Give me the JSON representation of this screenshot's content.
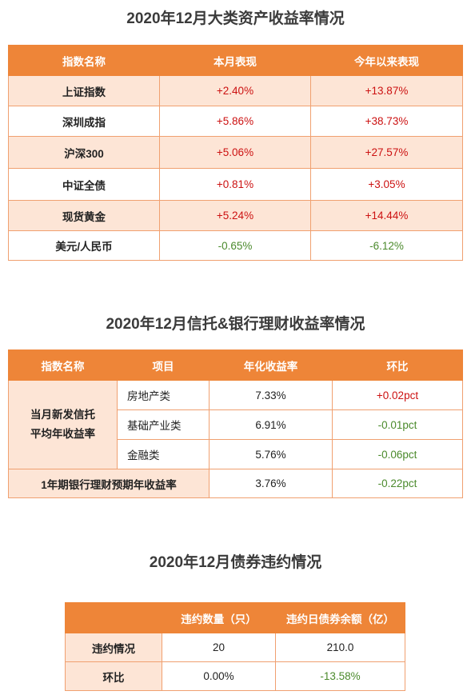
{
  "section1": {
    "title": "2020年12月大类资产收益率情况",
    "headers": [
      "指数名称",
      "本月表现",
      "今年以来表现"
    ],
    "rows": [
      {
        "name": "上证指数",
        "month": "+2.40%",
        "ytd": "+13.87%"
      },
      {
        "name": "深圳成指",
        "month": "+5.86%",
        "ytd": "+38.73%"
      },
      {
        "name": "沪深300",
        "month": "+5.06%",
        "ytd": "+27.57%"
      },
      {
        "name": "中证全债",
        "month": "+0.81%",
        "ytd": "+3.05%"
      },
      {
        "name": "现货黄金",
        "month": "+5.24%",
        "ytd": "+14.44%"
      },
      {
        "name": "美元/人民币",
        "month": "-0.65%",
        "ytd": "-6.12%"
      }
    ]
  },
  "section2": {
    "title": "2020年12月信托&银行理财收益率情况",
    "headers": [
      "指数名称",
      "项目",
      "年化收益率",
      "环比"
    ],
    "group_label_line1": "当月新发信托",
    "group_label_line2": "平均年收益率",
    "rows": [
      {
        "item": "房地产类",
        "rate": "7.33%",
        "mom": "+0.02pct"
      },
      {
        "item": "基础产业类",
        "rate": "6.91%",
        "mom": "-0.01pct"
      },
      {
        "item": "金融类",
        "rate": "5.76%",
        "mom": "-0.06pct"
      }
    ],
    "bank_row": {
      "label": "1年期银行理财预期年收益率",
      "rate": "3.76%",
      "mom": "-0.22pct"
    }
  },
  "section3": {
    "title": "2020年12月债券违约情况",
    "headers": [
      "",
      "违约数量（只）",
      "违约日债券余额（亿）"
    ],
    "rows": [
      {
        "name": "违约情况",
        "count": "20",
        "balance": "210.0"
      },
      {
        "name": "环比",
        "count": "0.00%",
        "balance": "-13.58%"
      }
    ]
  }
}
